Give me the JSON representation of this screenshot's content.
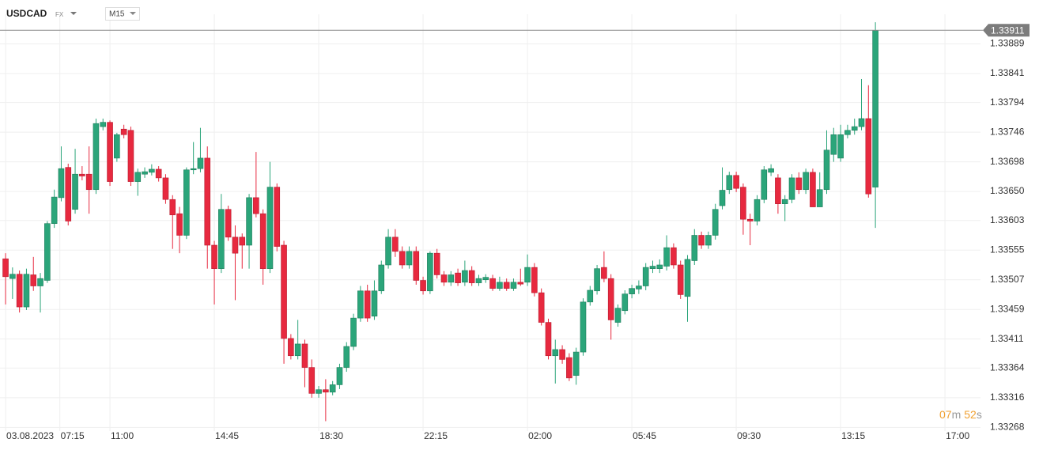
{
  "header": {
    "symbol": "USDCAD",
    "market": "FX",
    "interval": "M15"
  },
  "countdown": [
    "07",
    "m",
    "52",
    "s"
  ],
  "chart_data": {
    "type": "candlestick",
    "last_price": 1.33911,
    "up_color": "#2ba57a",
    "down_color": "#e7293f",
    "grid": true,
    "x": [
      0,
      1,
      2,
      3,
      4,
      5,
      6,
      7,
      8,
      9,
      10,
      11,
      12,
      13,
      14,
      15,
      16,
      17,
      18,
      19,
      20,
      21,
      22,
      23,
      24,
      25,
      26,
      27,
      28,
      29,
      30,
      31,
      32,
      33,
      34,
      35,
      36,
      37,
      38,
      39,
      40,
      41,
      42,
      43,
      44,
      45,
      46,
      47,
      48,
      49,
      50,
      51,
      52,
      53,
      54,
      55,
      56,
      57,
      58,
      59,
      60,
      61,
      62,
      63,
      64,
      65,
      66,
      67,
      68,
      69,
      70,
      71,
      72,
      73,
      74,
      75,
      76,
      77,
      78,
      79,
      80,
      81,
      82,
      83,
      84,
      85,
      86,
      87,
      88,
      89,
      90,
      91,
      92,
      93,
      94,
      95,
      96,
      97,
      98,
      99,
      100,
      101,
      102,
      103,
      104,
      105,
      106,
      107,
      108,
      109,
      110,
      111,
      112,
      113,
      114,
      115,
      116,
      117,
      118,
      119,
      120,
      121,
      122,
      123,
      124,
      125
    ],
    "open": [
      1.33541,
      1.33509,
      1.33516,
      1.33463,
      1.33515,
      1.33497,
      1.33506,
      1.33598,
      1.3364,
      1.33689,
      1.33621,
      1.33678,
      1.33678,
      1.33653,
      1.33755,
      1.33762,
      1.33704,
      1.33751,
      1.33749,
      1.33666,
      1.33678,
      1.33681,
      1.33686,
      1.33672,
      1.33637,
      1.33614,
      1.33579,
      1.33685,
      1.33687,
      1.33704,
      1.33563,
      1.33525,
      1.33621,
      1.33576,
      1.33576,
      1.33563,
      1.3364,
      1.33614,
      1.33525,
      1.33657,
      1.33563,
      1.33412,
      1.33384,
      1.33403,
      1.33365,
      1.33323,
      1.33329,
      1.33325,
      1.33337,
      1.33365,
      1.33399,
      1.33445,
      1.33489,
      1.33448,
      1.33489,
      1.33531,
      1.33576,
      1.33553,
      1.33531,
      1.33553,
      1.33506,
      1.33489,
      1.3355,
      1.33515,
      1.33503,
      1.33518,
      1.33503,
      1.33522,
      1.33502,
      1.33507,
      1.33509,
      1.33493,
      1.33503,
      1.33493,
      1.33503,
      1.33503,
      1.33527,
      1.33486,
      1.33438,
      1.33384,
      1.33394,
      1.33381,
      1.33352,
      1.3339,
      1.33471,
      1.33489,
      1.33527,
      1.33509,
      1.33438,
      1.33457,
      1.33484,
      1.33492,
      1.33497,
      1.33525,
      1.33525,
      1.33529,
      1.33559,
      1.33531,
      1.3348,
      1.33538,
      1.33579,
      1.33563,
      1.33579,
      1.33627,
      1.33653,
      1.33676,
      1.33657,
      1.33605,
      1.33602,
      1.33637,
      1.33681,
      1.33672,
      1.3363,
      1.33637,
      1.33672,
      1.33653,
      1.33681,
      1.33625,
      1.33653,
      1.3371,
      1.33704,
      1.33742,
      1.33749,
      1.33755,
      1.33768,
      1.33657
    ],
    "high": [
      1.3355,
      1.33527,
      1.33522,
      1.33525,
      1.33544,
      1.33518,
      1.33602,
      1.33653,
      1.33723,
      1.33695,
      1.33719,
      1.33691,
      1.33723,
      1.33768,
      1.33768,
      1.33765,
      1.33745,
      1.33758,
      1.33755,
      1.33687,
      1.33689,
      1.33694,
      1.33691,
      1.33678,
      1.33644,
      1.33625,
      1.33689,
      1.3373,
      1.33753,
      1.33723,
      1.3357,
      1.33646,
      1.33627,
      1.33595,
      1.33582,
      1.33646,
      1.33714,
      1.33621,
      1.33698,
      1.33663,
      1.3357,
      1.33419,
      1.33442,
      1.3341,
      1.33378,
      1.33335,
      1.33346,
      1.33343,
      1.33371,
      1.33406,
      1.33452,
      1.33497,
      1.33499,
      1.33506,
      1.33538,
      1.33589,
      1.33589,
      1.33561,
      1.33561,
      1.33561,
      1.33512,
      1.33553,
      1.33557,
      1.33521,
      1.33521,
      1.33525,
      1.33538,
      1.33529,
      1.33515,
      1.33516,
      1.33515,
      1.33512,
      1.33509,
      1.33509,
      1.33525,
      1.33548,
      1.33534,
      1.33493,
      1.33444,
      1.3341,
      1.33401,
      1.33388,
      1.33397,
      1.33477,
      1.33497,
      1.33531,
      1.33553,
      1.33516,
      1.33467,
      1.3349,
      1.33499,
      1.33506,
      1.33534,
      1.33538,
      1.3354,
      1.33579,
      1.33566,
      1.33538,
      1.33547,
      1.33589,
      1.33585,
      1.33585,
      1.3363,
      1.33689,
      1.33682,
      1.33682,
      1.33663,
      1.33614,
      1.33644,
      1.33691,
      1.33694,
      1.33678,
      1.33644,
      1.33678,
      1.33681,
      1.33687,
      1.33687,
      1.33681,
      1.33749,
      1.33753,
      1.33758,
      1.33758,
      1.33768,
      1.33832,
      1.33822,
      1.33924
    ],
    "low": [
      1.33467,
      1.33476,
      1.33454,
      1.33458,
      1.33489,
      1.33454,
      1.33502,
      1.33591,
      1.33634,
      1.33595,
      1.33614,
      1.33668,
      1.33614,
      1.33646,
      1.33749,
      1.33659,
      1.33698,
      1.33736,
      1.33659,
      1.33643,
      1.33672,
      1.33676,
      1.33666,
      1.3363,
      1.33557,
      1.3355,
      1.33573,
      1.33678,
      1.33681,
      1.33525,
      1.33467,
      1.33518,
      1.3357,
      1.33474,
      1.33525,
      1.33525,
      1.33608,
      1.33499,
      1.33518,
      1.33553,
      1.33371,
      1.33378,
      1.33378,
      1.33333,
      1.33316,
      1.33316,
      1.33278,
      1.3332,
      1.3333,
      1.33358,
      1.33393,
      1.33439,
      1.33439,
      1.33442,
      1.33484,
      1.33525,
      1.33544,
      1.33525,
      1.33525,
      1.33499,
      1.33483,
      1.33484,
      1.33509,
      1.33497,
      1.33497,
      1.33497,
      1.33497,
      1.33497,
      1.33497,
      1.33502,
      1.33489,
      1.33489,
      1.33489,
      1.33489,
      1.33497,
      1.33497,
      1.3348,
      1.33433,
      1.33378,
      1.33339,
      1.33371,
      1.33343,
      1.33337,
      1.33384,
      1.33465,
      1.33483,
      1.33503,
      1.3341,
      1.33431,
      1.33451,
      1.33477,
      1.33484,
      1.3349,
      1.33518,
      1.33518,
      1.33522,
      1.33525,
      1.33476,
      1.33439,
      1.33531,
      1.33557,
      1.33557,
      1.33572,
      1.33621,
      1.33646,
      1.33649,
      1.3358,
      1.33563,
      1.33595,
      1.33631,
      1.33675,
      1.33614,
      1.33602,
      1.33631,
      1.33646,
      1.33646,
      1.33625,
      1.33625,
      1.33646,
      1.33698,
      1.33698,
      1.33736,
      1.33742,
      1.33749,
      1.3364,
      1.33591
    ],
    "close": [
      1.33512,
      1.33516,
      1.33463,
      1.33516,
      1.33497,
      1.33509,
      1.33598,
      1.33641,
      1.33687,
      1.33602,
      1.33678,
      1.33675,
      1.33653,
      1.3376,
      1.33762,
      1.33666,
      1.33742,
      1.33742,
      1.33666,
      1.33681,
      1.33682,
      1.33686,
      1.33672,
      1.33637,
      1.33612,
      1.33579,
      1.33685,
      1.33687,
      1.33704,
      1.33563,
      1.33525,
      1.33621,
      1.33576,
      1.3355,
      1.33563,
      1.3364,
      1.33614,
      1.33525,
      1.33657,
      1.33561,
      1.33412,
      1.33384,
      1.33403,
      1.33365,
      1.33323,
      1.33329,
      1.33325,
      1.33337,
      1.33365,
      1.33399,
      1.33445,
      1.33489,
      1.33445,
      1.33489,
      1.33531,
      1.33576,
      1.33553,
      1.33531,
      1.33553,
      1.33506,
      1.33489,
      1.3355,
      1.33515,
      1.33503,
      1.33515,
      1.33502,
      1.33522,
      1.33502,
      1.33509,
      1.33511,
      1.33493,
      1.33503,
      1.33493,
      1.33503,
      1.335,
      1.33527,
      1.33486,
      1.33438,
      1.33384,
      1.33394,
      1.33378,
      1.33348,
      1.3339,
      1.33471,
      1.3349,
      1.33525,
      1.33509,
      1.33442,
      1.33461,
      1.33484,
      1.33493,
      1.33497,
      1.33527,
      1.33529,
      1.33531,
      1.33559,
      1.33531,
      1.33483,
      1.3354,
      1.33579,
      1.33563,
      1.33579,
      1.33621,
      1.33652,
      1.33676,
      1.33655,
      1.33605,
      1.33602,
      1.33637,
      1.33685,
      1.33687,
      1.3363,
      1.33637,
      1.33672,
      1.33653,
      1.33681,
      1.33625,
      1.33653,
      1.33717,
      1.33742,
      1.33742,
      1.33749,
      1.33755,
      1.33768,
      1.33646,
      1.33911
    ],
    "xlim": [
      -0.8,
      140.1
    ],
    "xticks": [
      {
        "value": 0,
        "label": "03.08.2023"
      },
      {
        "value": 7.8,
        "label": "07:15"
      },
      {
        "value": 15,
        "label": "11:00"
      },
      {
        "value": 30,
        "label": "14:45"
      },
      {
        "value": 45,
        "label": "18:30"
      },
      {
        "value": 60,
        "label": "22:15"
      },
      {
        "value": 75,
        "label": "02:00"
      },
      {
        "value": 90,
        "label": "05:45"
      },
      {
        "value": 105,
        "label": "09:30"
      },
      {
        "value": 120,
        "label": "13:15"
      },
      {
        "value": 135,
        "label": "17:00"
      }
    ],
    "ylim": [
      1.33262,
      1.33937
    ],
    "yticks": [
      1.33889,
      1.33841,
      1.33794,
      1.33746,
      1.33698,
      {
        "value": 1.3365,
        "label": "1.33650"
      },
      1.33603,
      1.33555,
      1.33507,
      1.33459,
      1.33411,
      1.33364,
      1.33316,
      1.33268
    ]
  }
}
